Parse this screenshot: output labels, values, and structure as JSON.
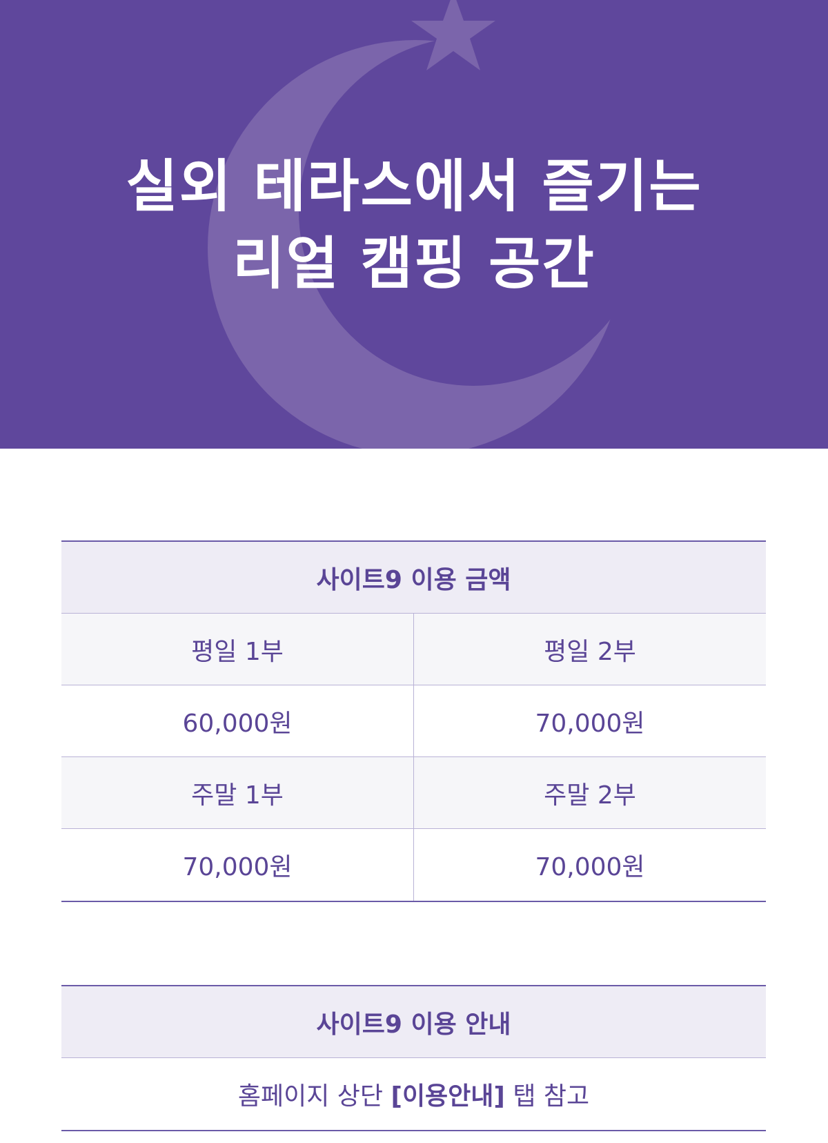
{
  "banner": {
    "title_line1": "실외 테라스에서 즐기는",
    "title_line2": "리얼 캠핑 공간",
    "bg_color": "#5f479c",
    "decor": [
      "crescent-moon-icon",
      "star-icon"
    ]
  },
  "price_table": {
    "header": "사이트9 이용 금액",
    "rows": [
      [
        "평일 1부",
        "평일 2부"
      ],
      [
        "60,000원",
        "70,000원"
      ],
      [
        "주말 1부",
        "주말 2부"
      ],
      [
        "70,000원",
        "70,000원"
      ]
    ]
  },
  "info_table": {
    "header": "사이트9 이용 안내",
    "text_before": "홈페이지 상단 ",
    "text_bold": "[이용안내]",
    "text_after": " 탭 참고"
  },
  "colors": {
    "accent": "#5a4596",
    "header_bg": "#eeecf5"
  }
}
